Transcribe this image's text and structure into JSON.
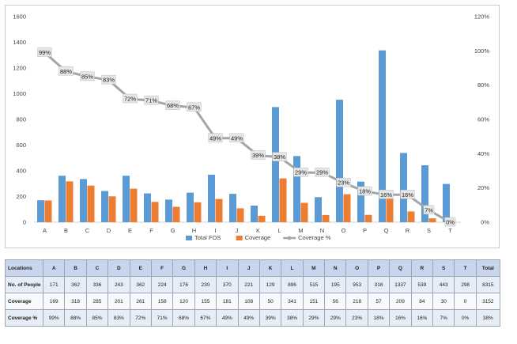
{
  "chart_data": {
    "type": "bar",
    "categories": [
      "A",
      "B",
      "C",
      "D",
      "E",
      "F",
      "G",
      "H",
      "I",
      "J",
      "K",
      "L",
      "M",
      "N",
      "O",
      "P",
      "Q",
      "R",
      "S",
      "T"
    ],
    "series": [
      {
        "name": "Total FOS",
        "kind": "bar",
        "axis": "left",
        "color": "#5B9BD5",
        "values": [
          171,
          362,
          336,
          243,
          362,
          224,
          176,
          230,
          370,
          221,
          129,
          896,
          515,
          195,
          953,
          316,
          1337,
          539,
          443,
          298
        ]
      },
      {
        "name": "Coverage",
        "kind": "bar",
        "axis": "left",
        "color": "#ED7D31",
        "values": [
          169,
          318,
          285,
          201,
          261,
          158,
          120,
          155,
          181,
          108,
          50,
          341,
          151,
          56,
          218,
          57,
          209,
          84,
          30,
          0
        ]
      },
      {
        "name": "Coverage %",
        "kind": "line",
        "axis": "right",
        "color": "#A5A5A5",
        "values": [
          99,
          88,
          85,
          83,
          72,
          71,
          68,
          67,
          49,
          49,
          39,
          38,
          29,
          29,
          23,
          18,
          16,
          16,
          7,
          0
        ]
      }
    ],
    "ylim": [
      0,
      1600
    ],
    "yticks": [
      0,
      200,
      400,
      600,
      800,
      1000,
      1200,
      1400,
      1600
    ],
    "y2lim": [
      0,
      120
    ],
    "y2ticks": [
      "0%",
      "20%",
      "40%",
      "60%",
      "80%",
      "100%",
      "120%"
    ],
    "data_labels": [
      "99%",
      "88%",
      "85%",
      "83%",
      "72%",
      "71%",
      "68%",
      "67%",
      "49%",
      "49%",
      "39%",
      "38%",
      "29%",
      "29%",
      "23%",
      "18%",
      "16%",
      "16%",
      "7%",
      "0%"
    ],
    "legend": [
      "Total FOS",
      "Coverage",
      "Coverage %"
    ],
    "legend_position": "bottom",
    "grid": false
  },
  "table": {
    "header_label": "Locations",
    "total_label": "Total",
    "rows": [
      {
        "label": "No. of People",
        "values": [
          "171",
          "362",
          "336",
          "243",
          "362",
          "224",
          "176",
          "230",
          "370",
          "221",
          "129",
          "896",
          "515",
          "195",
          "953",
          "316",
          "1337",
          "539",
          "443",
          "298"
        ],
        "total": "8315"
      },
      {
        "label": "Coverage",
        "values": [
          "169",
          "318",
          "285",
          "201",
          "261",
          "158",
          "120",
          "155",
          "181",
          "108",
          "50",
          "341",
          "151",
          "56",
          "218",
          "57",
          "209",
          "84",
          "30",
          "0"
        ],
        "total": "3152"
      },
      {
        "label": "Coverage %",
        "values": [
          "99%",
          "88%",
          "85%",
          "83%",
          "72%",
          "71%",
          "68%",
          "67%",
          "49%",
          "49%",
          "39%",
          "38%",
          "29%",
          "29%",
          "23%",
          "18%",
          "16%",
          "16%",
          "7%",
          "0%"
        ],
        "total": "38%"
      }
    ]
  }
}
